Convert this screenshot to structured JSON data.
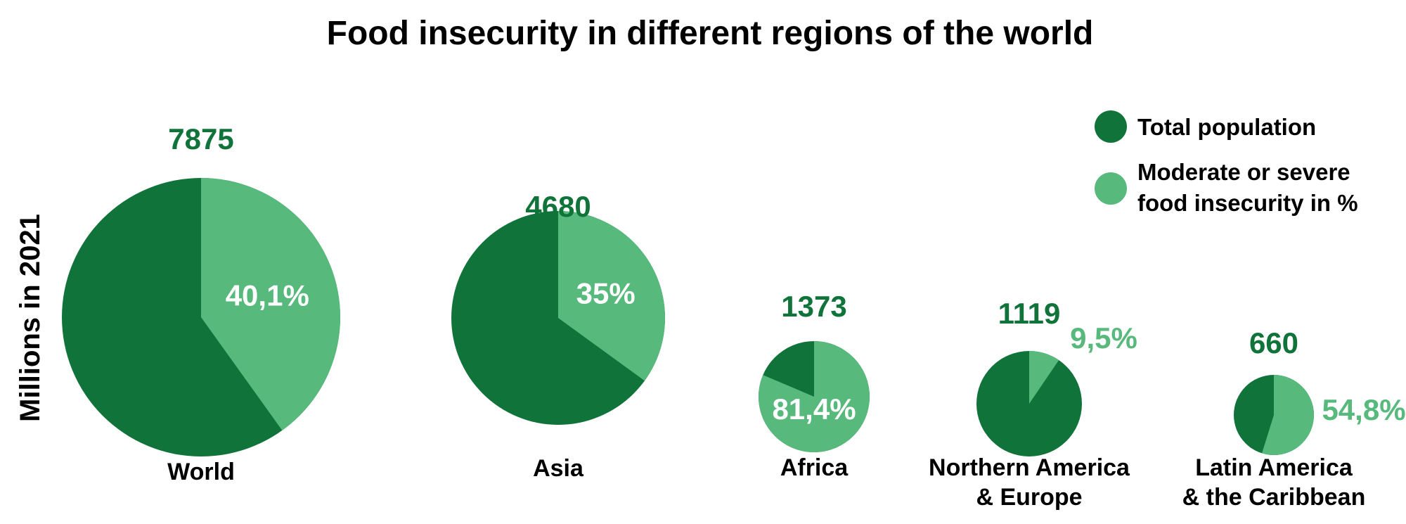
{
  "chart_data": {
    "type": "pie",
    "title": "Food insecurity in different regions of the world",
    "ylabel": "Millions in 2021",
    "legend": {
      "placement": "top-right",
      "entries": [
        {
          "label_lines": [
            "Total population"
          ],
          "color": "#10743A"
        },
        {
          "label_lines": [
            "Moderate or severe",
            "food insecurity in %"
          ],
          "color": "#57B97B"
        }
      ]
    },
    "colors": {
      "total": "#10743A",
      "insecure": "#57B97B",
      "inside_label": "#FFFFFF"
    },
    "regions": [
      {
        "name_lines": [
          "World"
        ],
        "total": 7875,
        "total_label": "7875",
        "insecure_pct": 40.1,
        "pct_label": "40,1%",
        "pct_label_position": "inside"
      },
      {
        "name_lines": [
          "Asia"
        ],
        "total": 4680,
        "total_label": "4680",
        "insecure_pct": 35,
        "pct_label": "35%",
        "pct_label_position": "inside"
      },
      {
        "name_lines": [
          "Africa"
        ],
        "total": 1373,
        "total_label": "1373",
        "insecure_pct": 81.4,
        "pct_label": "81,4%",
        "pct_label_position": "inside"
      },
      {
        "name_lines": [
          "Northern America",
          "& Europe"
        ],
        "total": 1119,
        "total_label": "1119",
        "insecure_pct": 9.5,
        "pct_label": "9,5%",
        "pct_label_position": "outside"
      },
      {
        "name_lines": [
          "Latin America",
          "& the Caribbean"
        ],
        "total": 660,
        "total_label": "660",
        "insecure_pct": 54.8,
        "pct_label": "54,8%",
        "pct_label_position": "outside"
      }
    ]
  }
}
